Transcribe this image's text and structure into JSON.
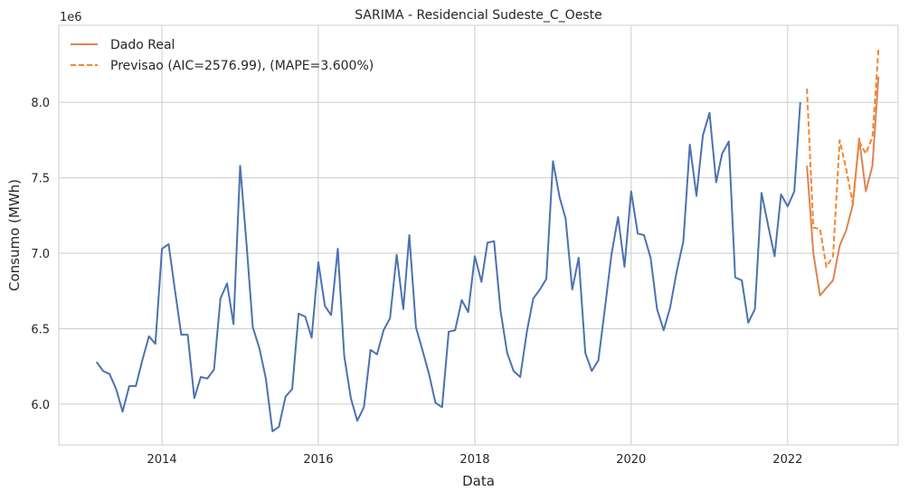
{
  "chart_data": {
    "type": "line",
    "title": "SARIMA - Residencial Sudeste_C_Oeste",
    "xlabel": "Data",
    "ylabel": "Consumo (MWh)",
    "y_offset_label": "1e6",
    "xlim": [
      "2012-09-06",
      "2023-06-01"
    ],
    "ylim": [
      5.73,
      8.51
    ],
    "x_ticks": [
      {
        "date": "2014-01-01",
        "label": "2014"
      },
      {
        "date": "2016-01-01",
        "label": "2016"
      },
      {
        "date": "2018-01-01",
        "label": "2018"
      },
      {
        "date": "2020-01-01",
        "label": "2020"
      },
      {
        "date": "2022-01-01",
        "label": "2022"
      }
    ],
    "y_ticks": [
      {
        "value": 6.0,
        "label": "6.0"
      },
      {
        "value": 6.5,
        "label": "6.5"
      },
      {
        "value": 7.0,
        "label": "7.0"
      },
      {
        "value": 7.5,
        "label": "7.5"
      },
      {
        "value": 8.0,
        "label": "8.0"
      }
    ],
    "grid": true,
    "legend_position": "top-left",
    "series": [
      {
        "name": "",
        "color": "#4c72b0",
        "style": "solid",
        "x": [
          "2013-03-01",
          "2013-04-01",
          "2013-05-01",
          "2013-06-01",
          "2013-07-01",
          "2013-08-01",
          "2013-09-01",
          "2013-10-01",
          "2013-11-01",
          "2013-12-01",
          "2014-01-01",
          "2014-02-01",
          "2014-03-01",
          "2014-04-01",
          "2014-05-01",
          "2014-06-01",
          "2014-07-01",
          "2014-08-01",
          "2014-09-01",
          "2014-10-01",
          "2014-11-01",
          "2014-12-01",
          "2015-01-01",
          "2015-02-01",
          "2015-03-01",
          "2015-04-01",
          "2015-05-01",
          "2015-06-01",
          "2015-07-01",
          "2015-08-01",
          "2015-09-01",
          "2015-10-01",
          "2015-11-01",
          "2015-12-01",
          "2016-01-01",
          "2016-02-01",
          "2016-03-01",
          "2016-04-01",
          "2016-05-01",
          "2016-06-01",
          "2016-07-01",
          "2016-08-01",
          "2016-09-01",
          "2016-10-01",
          "2016-11-01",
          "2016-12-01",
          "2017-01-01",
          "2017-02-01",
          "2017-03-01",
          "2017-04-01",
          "2017-05-01",
          "2017-06-01",
          "2017-07-01",
          "2017-08-01",
          "2017-09-01",
          "2017-10-01",
          "2017-11-01",
          "2017-12-01",
          "2018-01-01",
          "2018-02-01",
          "2018-03-01",
          "2018-04-01",
          "2018-05-01",
          "2018-06-01",
          "2018-07-01",
          "2018-08-01",
          "2018-09-01",
          "2018-10-01",
          "2018-11-01",
          "2018-12-01",
          "2019-01-01",
          "2019-02-01",
          "2019-03-01",
          "2019-04-01",
          "2019-05-01",
          "2019-06-01",
          "2019-07-01",
          "2019-08-01",
          "2019-09-01",
          "2019-10-01",
          "2019-11-01",
          "2019-12-01",
          "2020-01-01",
          "2020-02-01",
          "2020-03-01",
          "2020-04-01",
          "2020-05-01",
          "2020-06-01",
          "2020-07-01",
          "2020-08-01",
          "2020-09-01",
          "2020-10-01",
          "2020-11-01",
          "2020-12-01",
          "2021-01-01",
          "2021-02-01",
          "2021-03-01",
          "2021-04-01",
          "2021-05-01",
          "2021-06-01",
          "2021-07-01",
          "2021-08-01",
          "2021-09-01",
          "2021-10-01",
          "2021-11-01",
          "2021-12-01",
          "2022-01-01",
          "2022-02-01",
          "2022-03-01"
        ],
        "y": [
          6.28,
          6.22,
          6.2,
          6.1,
          5.95,
          6.12,
          6.12,
          6.29,
          6.45,
          6.4,
          7.03,
          7.06,
          6.77,
          6.46,
          6.46,
          6.04,
          6.18,
          6.17,
          6.23,
          6.7,
          6.8,
          6.53,
          7.58,
          7.04,
          6.51,
          6.37,
          6.17,
          5.82,
          5.85,
          6.05,
          6.1,
          6.6,
          6.58,
          6.44,
          6.94,
          6.65,
          6.59,
          7.03,
          6.32,
          6.04,
          5.89,
          5.98,
          6.36,
          6.33,
          6.49,
          6.57,
          6.99,
          6.63,
          7.12,
          6.51,
          6.36,
          6.2,
          6.01,
          5.98,
          6.48,
          6.49,
          6.69,
          6.61,
          6.98,
          6.81,
          7.07,
          7.08,
          6.62,
          6.34,
          6.22,
          6.18,
          6.48,
          6.7,
          6.76,
          6.83,
          7.61,
          7.37,
          7.23,
          6.76,
          6.97,
          6.34,
          6.22,
          6.29,
          6.64,
          6.99,
          7.24,
          6.91,
          7.41,
          7.13,
          7.12,
          6.97,
          6.63,
          6.49,
          6.64,
          6.88,
          7.08,
          7.72,
          7.38,
          7.78,
          7.93,
          7.47,
          7.66,
          7.74,
          6.84,
          6.82,
          6.54,
          6.63,
          7.4,
          7.19,
          6.98,
          7.39,
          7.31,
          7.41,
          8.0
        ]
      },
      {
        "name": "Dado Real",
        "color": "#dd8452",
        "style": "solid",
        "x": [
          "2022-04-01",
          "2022-05-01",
          "2022-06-01",
          "2022-07-01",
          "2022-08-01",
          "2022-09-01",
          "2022-10-01",
          "2022-11-01",
          "2022-12-01",
          "2023-01-01",
          "2023-02-01",
          "2023-03-01"
        ],
        "y": [
          7.58,
          7.0,
          6.72,
          6.77,
          6.82,
          7.05,
          7.15,
          7.32,
          7.76,
          7.41,
          7.58,
          8.17
        ]
      },
      {
        "name": "Previsao (AIC=2576.99), (MAPE=3.600%)",
        "color": "#f28630",
        "style": "dashed",
        "x": [
          "2022-04-01",
          "2022-05-01",
          "2022-06-01",
          "2022-07-01",
          "2022-08-01",
          "2022-09-01",
          "2022-10-01",
          "2022-11-01",
          "2022-12-01",
          "2023-01-01",
          "2023-02-01",
          "2023-03-01"
        ],
        "y": [
          8.09,
          7.17,
          7.16,
          6.91,
          6.98,
          7.75,
          7.56,
          7.33,
          7.74,
          7.66,
          7.77,
          8.35
        ]
      }
    ]
  }
}
